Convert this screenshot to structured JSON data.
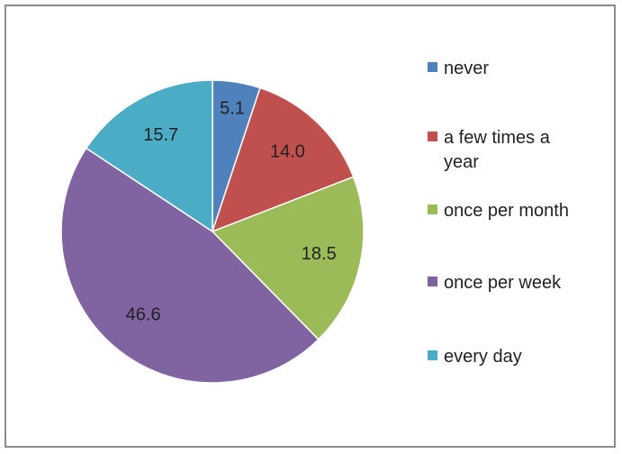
{
  "chart_data": {
    "type": "pie",
    "categories": [
      "never",
      "a few times a year",
      "once per month",
      "once per week",
      "every day"
    ],
    "values": [
      5.1,
      14.0,
      18.5,
      46.6,
      15.7
    ],
    "data_labels": [
      "5.1",
      "14.0",
      "18.5",
      "46.6",
      "15.7"
    ],
    "colors": [
      "#4f81bd",
      "#c0504d",
      "#9bbb59",
      "#8064a2",
      "#4bacc6"
    ],
    "title": "",
    "legend_position": "right",
    "legend": [
      {
        "lines": [
          "never"
        ]
      },
      {
        "lines": [
          "a few times a",
          "year"
        ]
      },
      {
        "lines": [
          "once per month"
        ]
      },
      {
        "lines": [
          "once per week"
        ]
      },
      {
        "lines": [
          "every day"
        ]
      }
    ]
  }
}
